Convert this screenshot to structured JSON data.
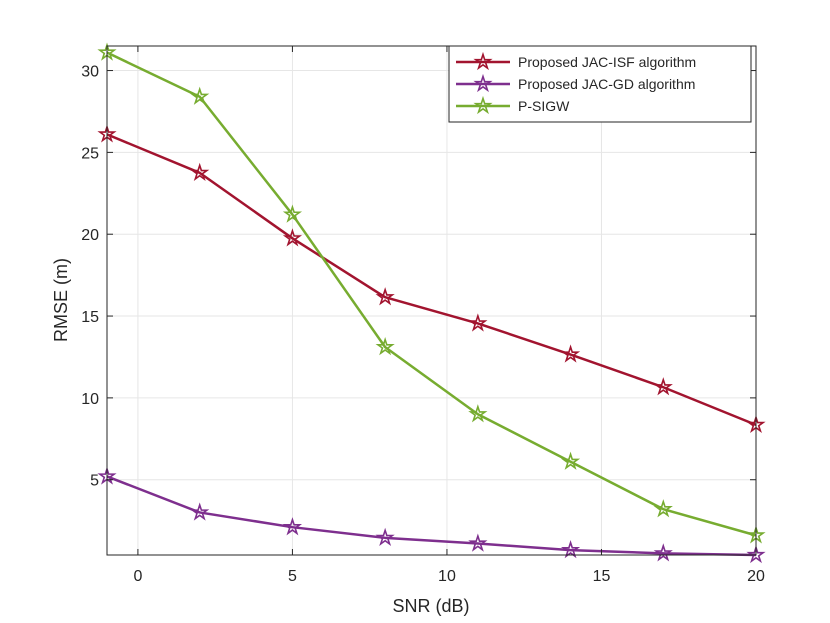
{
  "chart_data": {
    "type": "line",
    "title": "",
    "xlabel": "SNR (dB)",
    "ylabel": "RMSE (m)",
    "xlim": [
      -1,
      20
    ],
    "ylim": [
      0.4,
      31.5
    ],
    "xticks": [
      0,
      5,
      10,
      15,
      20
    ],
    "yticks": [
      5,
      10,
      15,
      20,
      25,
      30
    ],
    "grid": true,
    "legend_location": "top-right",
    "x": [
      -1,
      2,
      5,
      8,
      11,
      14,
      17,
      20
    ],
    "series": [
      {
        "name": "Proposed JAC-ISF algorithm",
        "color": "#a2142f",
        "marker": "pentagram",
        "values": [
          26.1,
          23.75,
          19.75,
          16.15,
          14.55,
          12.65,
          10.65,
          8.35
        ]
      },
      {
        "name": "Proposed JAC-GD algorithm",
        "color": "#7e2f8e",
        "marker": "pentagram",
        "values": [
          5.2,
          3.0,
          2.1,
          1.45,
          1.1,
          0.7,
          0.5,
          0.4
        ]
      },
      {
        "name": "P-SIGW",
        "color": "#77ac30",
        "marker": "pentagram",
        "values": [
          31.1,
          28.4,
          21.2,
          13.1,
          9.0,
          6.1,
          3.2,
          1.6
        ]
      }
    ]
  }
}
